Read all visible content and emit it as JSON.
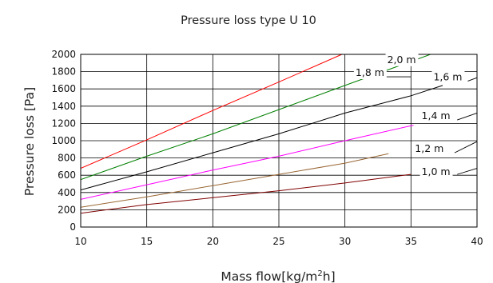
{
  "chart_data": {
    "type": "line",
    "title": "Pressure loss type U 10",
    "xlabel": "Mass flow[kg/m",
    "xlabel_sup": "2",
    "xlabel_end": "h]",
    "ylabel": "Pressure loss [Pa]",
    "xlim": [
      10,
      40
    ],
    "ylim": [
      0,
      2000
    ],
    "xticks": [
      10,
      15,
      20,
      25,
      30,
      35,
      40
    ],
    "yticks": [
      0,
      200,
      400,
      600,
      800,
      1000,
      1200,
      1400,
      1600,
      1800,
      2000
    ],
    "xticklabels": [
      "10",
      "15",
      "20",
      "25",
      "30",
      "35",
      "40"
    ],
    "yticklabels": [
      "0",
      "200",
      "400",
      "600",
      "800",
      "1000",
      "1200",
      "1400",
      "1600",
      "1800",
      "2000"
    ],
    "grid": true,
    "legend": "inline labels at right",
    "series": [
      {
        "name": "2,0 m",
        "color": "#ff0000",
        "x": [
          10,
          15,
          20,
          25,
          29.7,
          30.7
        ],
        "y": [
          680,
          1010,
          1350,
          1680,
          1995,
          2060
        ],
        "label_pos": [
          33.2,
          1900
        ],
        "leader": [
          [
            34.4,
            1880
          ],
          [
            35.6,
            1950
          ]
        ]
      },
      {
        "name": "1,8 m",
        "color": "#008000",
        "x": [
          10,
          15,
          20,
          25,
          30,
          34.5,
          37.2
        ],
        "y": [
          550,
          820,
          1080,
          1360,
          1640,
          1890,
          2040
        ],
        "label_pos": [
          30.8,
          1750
        ],
        "leader": [
          [
            33,
            1740
          ],
          [
            35,
            1740
          ]
        ]
      },
      {
        "name": "1,6 m",
        "color": "#000000",
        "x": [
          10,
          15,
          20,
          25,
          30,
          35,
          37.4
        ],
        "y": [
          430,
          640,
          860,
          1080,
          1320,
          1520,
          1640
        ],
        "label_pos": [
          36.7,
          1700
        ],
        "leader": [
          [
            39.3,
            1690
          ],
          [
            40,
            1730
          ]
        ]
      },
      {
        "name": "1,4 m",
        "color": "#ff00ff",
        "x": [
          10,
          15,
          20,
          25,
          30,
          35.2
        ],
        "y": [
          320,
          490,
          660,
          820,
          1000,
          1180
        ],
        "label_pos": [
          35.8,
          1250
        ],
        "leader": [
          [
            38.5,
            1240
          ],
          [
            40,
            1320
          ]
        ]
      },
      {
        "name": "1,2 m",
        "color": "#996633",
        "x": [
          10,
          15,
          20,
          25,
          30,
          33.3
        ],
        "y": [
          230,
          350,
          480,
          610,
          740,
          850
        ],
        "label_pos": [
          35.3,
          870
        ],
        "leader": [
          [
            38.3,
            860
          ],
          [
            40,
            990
          ]
        ]
      },
      {
        "name": "1,0 m",
        "color": "#800000",
        "x": [
          10,
          15,
          20,
          25,
          30,
          35
        ],
        "y": [
          160,
          260,
          340,
          420,
          510,
          610
        ],
        "label_pos": [
          35.8,
          600
        ],
        "leader": [
          [
            38.5,
            610
          ],
          [
            40,
            680
          ]
        ]
      }
    ]
  }
}
